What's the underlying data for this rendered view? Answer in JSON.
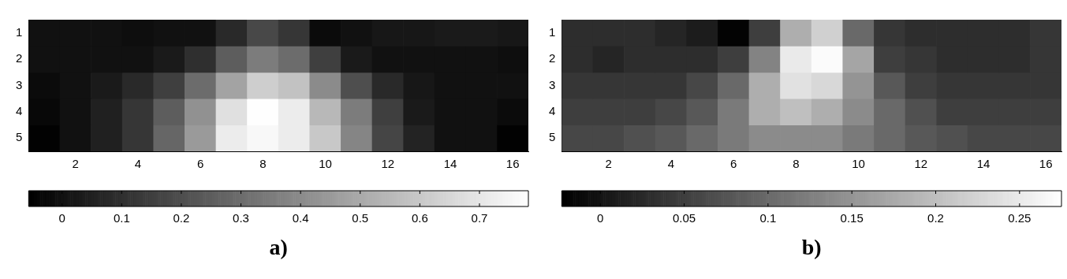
{
  "chart_data": [
    {
      "type": "heatmap",
      "title": "a)",
      "categories": [
        null,
        "2",
        null,
        "4",
        null,
        "6",
        null,
        "8",
        null,
        "10",
        null,
        "12",
        null,
        "14",
        null,
        "16"
      ],
      "y_categories": [
        "1",
        "2",
        "3",
        "4",
        "5"
      ],
      "cells": [
        [
          0.0,
          0.0,
          0.0,
          -0.01,
          0.0,
          0.0,
          0.08,
          0.18,
          0.12,
          -0.02,
          0.0,
          0.02,
          0.02,
          0.03,
          0.03,
          0.02
        ],
        [
          0.0,
          0.0,
          0.0,
          0.0,
          0.03,
          0.1,
          0.25,
          0.35,
          0.3,
          0.15,
          0.03,
          0.0,
          0.0,
          0.0,
          0.0,
          -0.01
        ],
        [
          -0.02,
          0.0,
          0.03,
          0.08,
          0.15,
          0.3,
          0.48,
          0.62,
          0.58,
          0.4,
          0.2,
          0.08,
          0.02,
          0.0,
          0.0,
          0.0
        ],
        [
          -0.03,
          0.0,
          0.05,
          0.12,
          0.25,
          0.42,
          0.68,
          0.78,
          0.72,
          0.55,
          0.35,
          0.15,
          0.03,
          0.0,
          0.0,
          -0.02
        ],
        [
          -0.05,
          0.0,
          0.05,
          0.12,
          0.28,
          0.45,
          0.72,
          0.76,
          0.72,
          0.6,
          0.38,
          0.17,
          0.06,
          0.0,
          0.0,
          -0.05
        ]
      ],
      "clim": [
        -0.056,
        0.782
      ],
      "cticks": [
        0,
        0.1,
        0.2,
        0.3,
        0.4,
        0.5,
        0.6,
        0.7
      ],
      "grid": false
    },
    {
      "type": "heatmap",
      "title": "b)",
      "categories": [
        null,
        "2",
        null,
        "4",
        null,
        "6",
        null,
        "8",
        null,
        "10",
        null,
        "12",
        null,
        "14",
        null,
        "16"
      ],
      "y_categories": [
        "1",
        "2",
        "3",
        "4",
        "5"
      ],
      "cells": [
        [
          0.03,
          0.03,
          0.03,
          0.02,
          0.01,
          -0.02,
          0.05,
          0.18,
          0.22,
          0.1,
          0.04,
          0.03,
          0.03,
          0.03,
          0.03,
          0.04
        ],
        [
          0.03,
          0.02,
          0.03,
          0.03,
          0.03,
          0.05,
          0.13,
          0.25,
          0.27,
          0.17,
          0.05,
          0.04,
          0.03,
          0.03,
          0.03,
          0.04
        ],
        [
          0.04,
          0.04,
          0.04,
          0.04,
          0.06,
          0.1,
          0.18,
          0.24,
          0.23,
          0.15,
          0.08,
          0.05,
          0.04,
          0.04,
          0.04,
          0.04
        ],
        [
          0.05,
          0.05,
          0.05,
          0.06,
          0.08,
          0.12,
          0.18,
          0.2,
          0.18,
          0.14,
          0.1,
          0.07,
          0.05,
          0.05,
          0.05,
          0.05
        ],
        [
          0.06,
          0.06,
          0.07,
          0.08,
          0.1,
          0.12,
          0.14,
          0.14,
          0.14,
          0.12,
          0.1,
          0.08,
          0.07,
          0.06,
          0.06,
          0.06
        ]
      ],
      "clim": [
        -0.023,
        0.275
      ],
      "cticks": [
        0,
        0.05,
        0.1,
        0.15,
        0.2,
        0.25
      ],
      "grid": false
    }
  ]
}
